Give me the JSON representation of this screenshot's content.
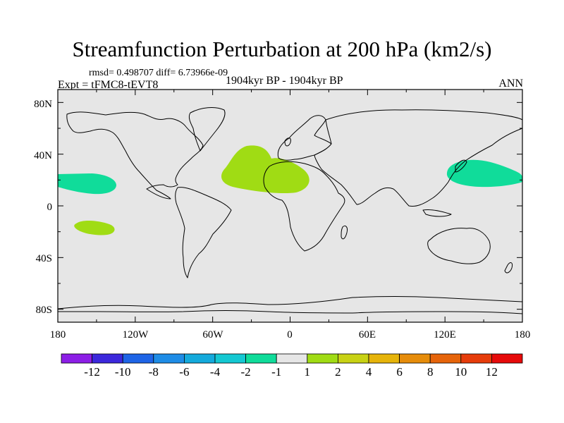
{
  "title": "Streamfunction Perturbation at 200 hPa (km2/s)",
  "stats": "rmsd= 0.498707 diff= 6.73966e-09",
  "experiment": "Expt = tFMC8-tEVT8",
  "period": "1904kyr BP - 1904kyr BP",
  "season": "ANN",
  "y_axis_labels": [
    "80N",
    "40N",
    "0",
    "40S",
    "80S"
  ],
  "x_axis_labels": [
    "180",
    "120W",
    "60W",
    "0",
    "60E",
    "120E",
    "180"
  ],
  "colorbar": {
    "labels": [
      "-12",
      "-10",
      "-8",
      "-6",
      "-4",
      "-2",
      "-1",
      "1",
      "2",
      "4",
      "6",
      "8",
      "10",
      "12"
    ],
    "colors": [
      "#8c1ee6",
      "#3c28dc",
      "#1e64e6",
      "#1e8ce6",
      "#14aadc",
      "#14c8d2",
      "#10dc9a",
      "#e6e6e6",
      "#a0dc14",
      "#c8d214",
      "#e6b40a",
      "#e68c0a",
      "#e6640a",
      "#e63c0a",
      "#e60a0a"
    ]
  },
  "map": {
    "background_color": "#e6e6e6",
    "positive_color": "#a0dc14",
    "negative_color": "#10dc9a"
  }
}
